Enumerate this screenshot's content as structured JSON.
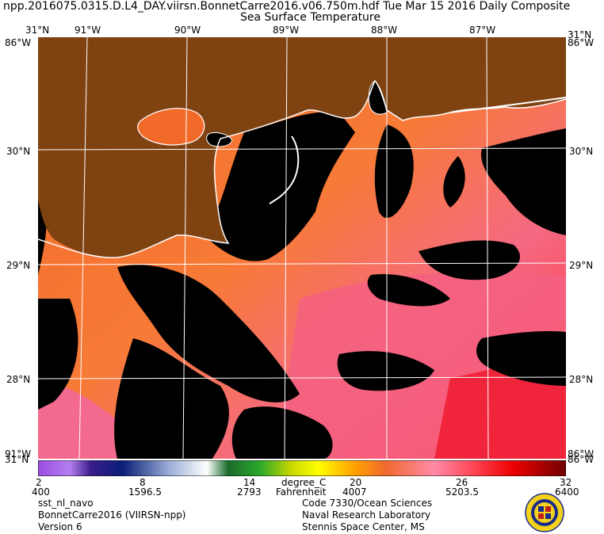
{
  "header": {
    "title": "npp.2016075.0315.D.L4_DAY.viirsn.BonnetCarre2016.v06.750m.hdf     Tue Mar 15 2016 Daily Composite",
    "subtitle": "Sea Surface Temperature"
  },
  "axes": {
    "top_labels": [
      "31°N",
      "91°W",
      "90°W",
      "89°W",
      "88°W",
      "87°W",
      "31°N"
    ],
    "top_right_extra": [
      "86°W",
      "86°W"
    ],
    "bottom_left": [
      "91°W",
      "31°N"
    ],
    "bottom_right": [
      "86°W",
      "86°W"
    ],
    "lat_left": [
      "30°N",
      "29°N",
      "28°N"
    ],
    "lat_right": [
      "30°N",
      "29°N",
      "28°N"
    ]
  },
  "colorbar": {
    "unit_c": "degree_C",
    "unit_f": "Fahrenheit",
    "celsius_ticks": [
      "2",
      "8",
      "14",
      "20",
      "26",
      "32"
    ],
    "secondary_ticks": [
      "400",
      "1596.5",
      "2793",
      "4007",
      "5203.5",
      "6400"
    ],
    "range_c": [
      2,
      32
    ]
  },
  "footer": {
    "left": [
      "sst_nl_navo",
      "BonnetCarre2016 (VIIRSN-npp)",
      "Version 6"
    ],
    "right": [
      "Code 7330/Ocean Sciences",
      "Naval Research Laboratory",
      "Stennis Space Center, MS"
    ]
  },
  "colors": {
    "land": "#7f4312",
    "cloud": "#000000",
    "sst_warm": "#f26a2a",
    "sst_hot": "#ff3c5a",
    "grid": "#ffffff"
  }
}
